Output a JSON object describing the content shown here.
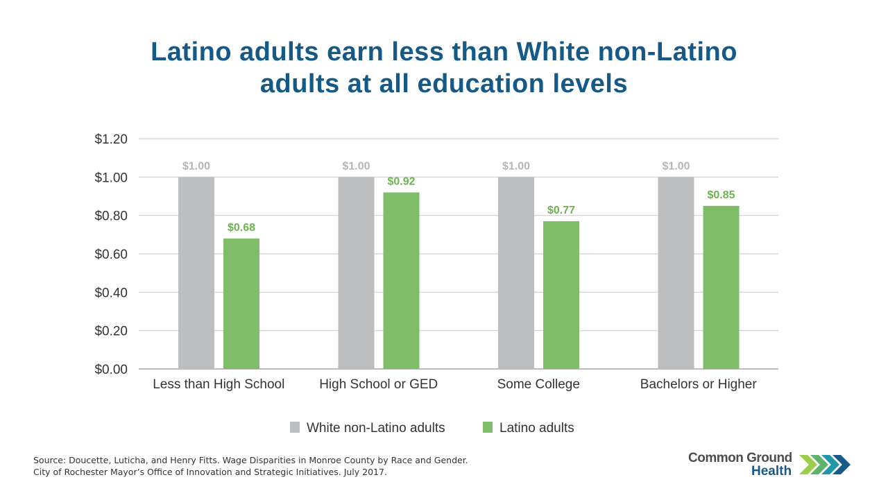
{
  "title_line1": "Latino adults earn less than White non-Latino",
  "title_line2": "adults at all education levels",
  "chart_data": {
    "type": "bar",
    "title": "Latino adults earn less than White non-Latino adults at all education levels",
    "categories": [
      "Less than High School",
      "High School or GED",
      "Some College",
      "Bachelors or Higher"
    ],
    "series": [
      {
        "name": "White non-Latino adults",
        "values": [
          1.0,
          1.0,
          1.0,
          1.0
        ],
        "labels": [
          "$1.00",
          "$1.00",
          "$1.00",
          "$1.00"
        ],
        "color": "#bcbec0",
        "label_color": "#b3b5b8"
      },
      {
        "name": "Latino adults",
        "values": [
          0.68,
          0.92,
          0.77,
          0.85
        ],
        "labels": [
          "$0.68",
          "$0.92",
          "$0.77",
          "$0.85"
        ],
        "color": "#80bd68",
        "label_color": "#6cb24f"
      }
    ],
    "yticks": [
      "$0.00",
      "$0.20",
      "$0.40",
      "$0.60",
      "$0.80",
      "$1.00",
      "$1.20"
    ],
    "ylim": [
      0,
      1.2
    ],
    "xlabel": "",
    "ylabel": "",
    "grid": true,
    "legend_position": "bottom"
  },
  "source_line1": "Source: Doucette, Luticha, and Henry Fitts. Wage Disparities in Monroe County by Race and Gender.",
  "source_line2": "City of Rochester Mayor’s Office of Innovation and Strategic Initiatives.  July 2017.",
  "logo": {
    "line1": "Common Ground",
    "line2": "Health"
  }
}
